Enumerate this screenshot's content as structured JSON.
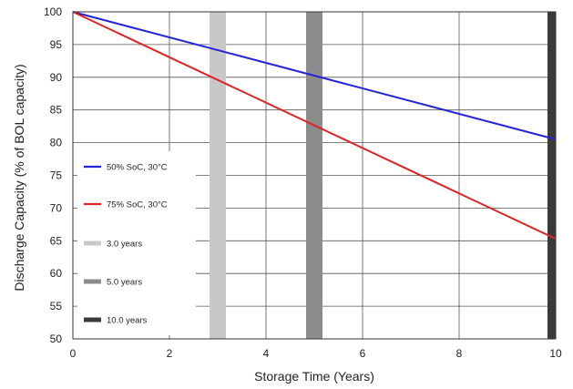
{
  "chart_data": {
    "type": "line",
    "title": "",
    "xlabel": "Storage Time (Years)",
    "ylabel": "Discharge Capacity (% of BOL capacity)",
    "xlim": [
      0,
      10
    ],
    "ylim": [
      50,
      100
    ],
    "x_ticks": [
      "0",
      "2",
      "4",
      "6",
      "8",
      "10"
    ],
    "y_ticks": [
      "50",
      "55",
      "60",
      "65",
      "70",
      "75",
      "80",
      "85",
      "90",
      "95",
      "100"
    ],
    "grid": true,
    "series": [
      {
        "name": "50% SoC, 30°C",
        "color": "#2424d8",
        "x": [
          0,
          10
        ],
        "y": [
          100,
          80.5
        ]
      },
      {
        "name": "75% SoC, 30°C",
        "color": "#e02424",
        "x": [
          0,
          10
        ],
        "y": [
          100,
          65.3
        ]
      }
    ],
    "markers": [
      {
        "name": "3.0 years",
        "x": 3.0,
        "color": "#c8c8c8"
      },
      {
        "name": "5.0 years",
        "x": 5.0,
        "color": "#8c8c8c"
      },
      {
        "name": "10.0 years",
        "x": 10.0,
        "color": "#3a3a3a"
      }
    ],
    "legend_position": "left"
  }
}
